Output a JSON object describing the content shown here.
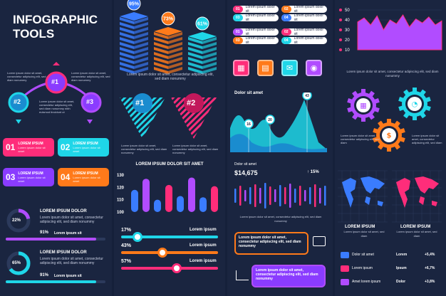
{
  "title_line1": "INFOGRAPHIC",
  "title_line2": "TOOLS",
  "lorem_short": "Lorem ipsum dolor sit amet, consectetur adipiscing elit, sed diam nonummy",
  "lorem_para": "Lorem ipsum dolor sit amet, consectetur adipiscing elit, sed diam nonummy nibh euismod tincidunt ut",
  "cycle": {
    "n1": "#1",
    "n2": "#2",
    "n3": "#3"
  },
  "cards": [
    {
      "num": "01",
      "label": "LOREM IPSUM",
      "sub": "Lorem ipsum dolor sit amet",
      "color": "#ff2d7a"
    },
    {
      "num": "02",
      "label": "LOREM IPSUM",
      "sub": "Lorem ipsum dolor sit amet",
      "color": "#1fd6e8"
    },
    {
      "num": "03",
      "label": "LOREM IPSUM",
      "sub": "Lorem ipsum dolor sit amet",
      "color": "#8a3cff"
    },
    {
      "num": "04",
      "label": "LOREM IPSUM",
      "sub": "Lorem ipsum dolor sit amet",
      "color": "#ff7a1a"
    }
  ],
  "donuts": [
    {
      "title": "LOREM IPSUM DOLOR",
      "pct": "22%",
      "val": 22,
      "bar_pct": "91%",
      "bar_label": "Lorem ipsum sit",
      "color": "#b14cff"
    },
    {
      "title": "LOREM IPSUM DOLOR",
      "pct": "65%",
      "val": 65,
      "bar_pct": "91%",
      "bar_label": "Lorem ipsum sit",
      "color": "#1fd6e8"
    }
  ],
  "cubes": [
    {
      "pct": "95%",
      "val": 95,
      "color": "#3a7cff"
    },
    {
      "pct": "73%",
      "val": 73,
      "color": "#ff7a1a"
    },
    {
      "pct": "61%",
      "val": 61,
      "color": "#1fd6e8"
    }
  ],
  "funnels": [
    {
      "num": "#1",
      "color": "#1fd6e8"
    },
    {
      "num": "#2",
      "color": "#ff2d7a"
    }
  ],
  "bar_section_title": "LOREM IPSUM DOLOR SIT AMET",
  "bar_chart": {
    "ticks": [
      "130",
      "120",
      "110",
      "100"
    ],
    "values": [
      118,
      127,
      110,
      122,
      113,
      128,
      112,
      121
    ],
    "colors": [
      "#3a7cff",
      "#b14cff",
      "#3a7cff",
      "#ff2d7a",
      "#3a7cff",
      "#b14cff",
      "#3a7cff",
      "#ff2d7a"
    ]
  },
  "sliders": [
    {
      "pct": "17%",
      "val": 17,
      "label": "Lorem ipsum",
      "color": "#1fd6e8"
    },
    {
      "pct": "43%",
      "val": 43,
      "label": "Lorem ipsum",
      "color": "#ff7a1a"
    },
    {
      "pct": "57%",
      "val": 57,
      "label": "Lorem ipsum",
      "color": "#ff2d7a"
    }
  ],
  "pills": [
    {
      "num": "01",
      "text": "Lorem ipsum dolor sit",
      "color": "#ff2d7a"
    },
    {
      "num": "02",
      "text": "Lorem ipsum dolor sit",
      "color": "#ff7a1a"
    },
    {
      "num": "03",
      "text": "Lorem ipsum dolor sit",
      "color": "#1fd6e8"
    },
    {
      "num": "04",
      "text": "Lorem ipsum dolor sit",
      "color": "#3a7cff"
    },
    {
      "num": "01",
      "text": "Lorem ipsum dolor sit",
      "color": "#b14cff"
    },
    {
      "num": "02",
      "text": "Lorem ipsum dolor sit",
      "color": "#ff2d7a"
    },
    {
      "num": "03",
      "text": "Lorem ipsum dolor sit",
      "color": "#ff7a1a"
    },
    {
      "num": "04",
      "text": "Lorem ipsum dolor sit",
      "color": "#1fd6e8"
    }
  ],
  "app_icons": [
    {
      "name": "calendar-icon",
      "color": "#ff2d7a"
    },
    {
      "name": "document-icon",
      "color": "#ff7a1a"
    },
    {
      "name": "mail-icon",
      "color": "#1fd6e8"
    },
    {
      "name": "camera-icon",
      "color": "#b14cff"
    }
  ],
  "area_title": "Dolor sit amet",
  "area_points": [
    {
      "label": "16",
      "val": 16
    },
    {
      "label": "20",
      "val": 20
    },
    {
      "label": "43",
      "val": 43
    }
  ],
  "stock": {
    "label": "Dolor sit amet",
    "value": "$14,675",
    "change": "15%"
  },
  "stock_bars": [
    0.5,
    0.7,
    0.4,
    0.6,
    0.8,
    0.55,
    0.9,
    0.65,
    0.45,
    0.75,
    0.6,
    0.85,
    0.5,
    0.7,
    0.4,
    0.6,
    0.8,
    0.55,
    0.7
  ],
  "callouts": [
    {
      "text": "Lorem ipsum dolor sit amet, consectetur adipiscing elit, sed diam nonummy",
      "color": "#ff7a1a"
    },
    {
      "text": "Lorem ipsum dolor sit amet, consectetur adipiscing elit, sed diam nonummy",
      "color": "#b14cff"
    }
  ],
  "area2": {
    "ticks": [
      "50",
      "40",
      "30",
      "20",
      "10"
    ],
    "values": [
      38,
      42,
      35,
      44,
      30,
      40,
      36,
      45,
      33,
      41,
      37,
      43,
      35,
      39
    ]
  },
  "gears": [
    {
      "name": "calendar-gear",
      "color": "#b14cff"
    },
    {
      "name": "chart-gear",
      "color": "#1fd6e8"
    },
    {
      "name": "dollar-gear",
      "color": "#ff7a1a"
    }
  ],
  "gear_text": "Lorem ipsum dolor sit amet, consectetur adipiscing elit, sed diam",
  "maps": [
    {
      "title": "LOREM IPSUM",
      "text": "Lorem ipsum dolor sit amet, sed diam",
      "color": "#3a7cff"
    },
    {
      "title": "LOREM IPSUM",
      "text": "Lorem ipsum dolor sit amet, sed diam",
      "color": "#ff2d7a"
    }
  ],
  "legend": [
    {
      "label": "Dolor sit amet",
      "col2": "Lorem",
      "val": "+5,4%",
      "color": "#3a7cff"
    },
    {
      "label": "Lorem ipsum",
      "col2": "Ipsum",
      "val": "+6,7%",
      "color": "#ff2d7a"
    },
    {
      "label": "Amet lorem ipsum",
      "col2": "Dolor",
      "val": "+3,8%",
      "color": "#b14cff"
    }
  ]
}
